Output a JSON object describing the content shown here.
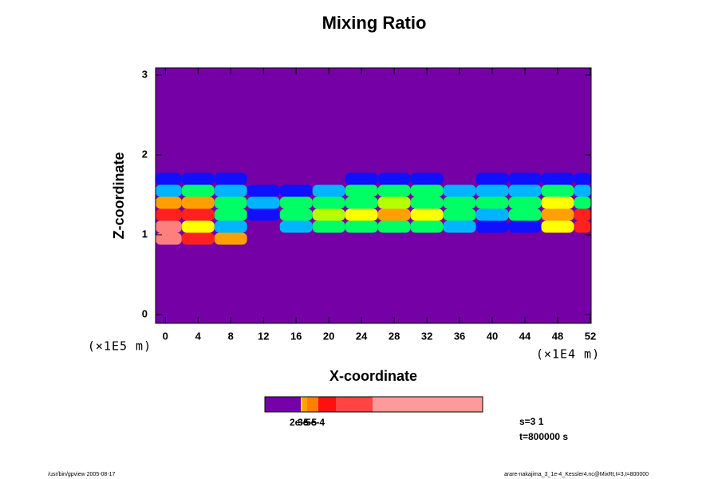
{
  "chart_data": {
    "type": "contour",
    "title": "Mixing Ratio",
    "x_label": "X-coordinate",
    "y_label": "Z-coordinate",
    "x_multiplier": "(×1E4 m)",
    "y_multiplier": "(×1E5 m)",
    "xlim": [
      -1.2,
      52.1
    ],
    "ylim": [
      -0.11,
      3.09
    ],
    "xticks": [
      0,
      4,
      8,
      12,
      16,
      20,
      24,
      28,
      32,
      36,
      40,
      44,
      48,
      52
    ],
    "yticks": [
      0,
      1,
      2,
      3
    ],
    "background_color": "#7400a6",
    "level_colors": [
      "#7400a6",
      "#1010ff",
      "#00b4ff",
      "#00ff64",
      "#b4ff00",
      "#ffff00",
      "#ffa000",
      "#ff2020",
      "#ff7f7f",
      "#ffd0d0"
    ],
    "grid": {
      "x": [
        0,
        4,
        8,
        12,
        16,
        20,
        24,
        28,
        32,
        36,
        40,
        44,
        48,
        52
      ],
      "y": [
        1.7,
        1.55,
        1.4,
        1.25,
        1.1,
        0.95
      ],
      "levels": [
        [
          1,
          1,
          1,
          0,
          0,
          0,
          1,
          1,
          1,
          0,
          1,
          1,
          1,
          1
        ],
        [
          2,
          3,
          2,
          1,
          1,
          2,
          3,
          3,
          3,
          2,
          2,
          2,
          3,
          2
        ],
        [
          6,
          6,
          3,
          2,
          3,
          3,
          3,
          4,
          3,
          3,
          3,
          3,
          5,
          3
        ],
        [
          7,
          7,
          3,
          1,
          3,
          4,
          5,
          6,
          5,
          3,
          2,
          3,
          6,
          7
        ],
        [
          8,
          5,
          2,
          0,
          2,
          3,
          3,
          3,
          3,
          2,
          1,
          1,
          5,
          7
        ],
        [
          8,
          7,
          6,
          0,
          0,
          0,
          0,
          0,
          0,
          0,
          0,
          0,
          0,
          0
        ]
      ]
    },
    "colorbar_colors": [
      "#7400a6",
      "#ffd000",
      "#ffa000",
      "#ff8000",
      "#ff1010",
      "#ff4444",
      "#ff9a9a"
    ],
    "colorbar_labels": [
      "2e-5",
      "3e-5",
      "5e-4"
    ],
    "annotations": [
      "s=3 1",
      "t=800000 s"
    ],
    "footer_left": "/usr/bin/gpview 2005-08-17",
    "footer_right": "arare-nakajima_3_1e-4_Kessler4.nc@MixRt,t=3,t=800000"
  }
}
